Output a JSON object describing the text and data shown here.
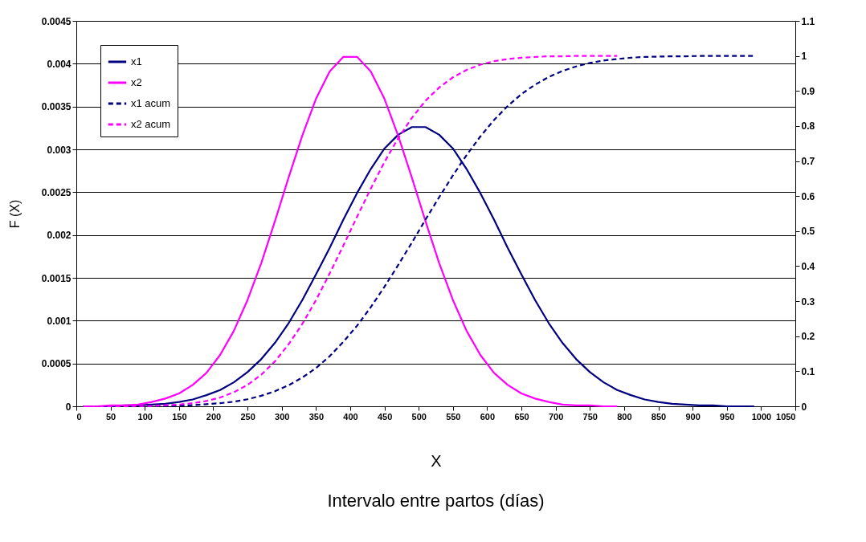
{
  "chart_data": {
    "type": "line",
    "xlabel": "X",
    "ylabel": "F (X)",
    "annotations": [
      "Intervalo entre partos (días)"
    ],
    "xlim": [
      0,
      1050
    ],
    "xticks": [
      0,
      50,
      100,
      150,
      200,
      250,
      300,
      350,
      400,
      450,
      500,
      550,
      600,
      650,
      700,
      750,
      800,
      850,
      900,
      950,
      1000,
      1050
    ],
    "ylim": [
      0,
      0.0045
    ],
    "yticks": [
      0,
      0.0005,
      0.001,
      0.0015,
      0.002,
      0.0025,
      0.003,
      0.0035,
      0.004,
      0.0045
    ],
    "y2lim": [
      0,
      1.1
    ],
    "y2ticks": [
      0,
      0.1,
      0.2,
      0.3,
      0.4,
      0.5,
      0.6,
      0.7,
      0.8,
      0.9,
      1,
      1.1
    ],
    "grid": "y",
    "legend": "top left",
    "marker": "none",
    "series": [
      {
        "name": "x1",
        "color": "#000080",
        "line_style": "solid",
        "x": [
          10,
          30,
          50,
          70,
          90,
          110,
          130,
          150,
          170,
          190,
          210,
          230,
          250,
          270,
          290,
          310,
          330,
          350,
          370,
          390,
          410,
          430,
          450,
          470,
          490,
          510,
          530,
          550,
          570,
          590,
          610,
          630,
          650,
          670,
          690,
          710,
          730,
          750,
          770,
          790,
          810,
          830,
          850,
          870,
          890,
          910,
          930,
          950,
          970,
          990
        ],
        "values": [
          0,
          0,
          0,
          1e-05,
          1e-05,
          2e-05,
          3e-05,
          5e-05,
          8e-05,
          0.00013,
          0.00019,
          0.00028,
          0.0004,
          0.00055,
          0.00074,
          0.00097,
          0.00124,
          0.00154,
          0.00185,
          0.00218,
          0.00249,
          0.00277,
          0.00301,
          0.00317,
          0.00326,
          0.00326,
          0.00317,
          0.00301,
          0.00277,
          0.00249,
          0.00218,
          0.00185,
          0.00154,
          0.00124,
          0.00097,
          0.00074,
          0.00055,
          0.0004,
          0.00028,
          0.00019,
          0.00013,
          8e-05,
          5e-05,
          3e-05,
          2e-05,
          1e-05,
          1e-05,
          0,
          0,
          0
        ]
      },
      {
        "name": "x2",
        "color": "#ff00ff",
        "line_style": "solid",
        "x": [
          10,
          30,
          50,
          70,
          90,
          110,
          130,
          150,
          170,
          190,
          210,
          230,
          250,
          270,
          290,
          310,
          330,
          350,
          370,
          390,
          410,
          430,
          450,
          470,
          490,
          510,
          530,
          550,
          570,
          590,
          610,
          630,
          650,
          670,
          690,
          710,
          730,
          750,
          770,
          790
        ],
        "values": [
          0,
          0,
          1e-05,
          1e-05,
          2e-05,
          5e-05,
          9e-05,
          0.00015,
          0.00025,
          0.00039,
          0.0006,
          0.00088,
          0.00124,
          0.00167,
          0.00216,
          0.00267,
          0.00316,
          0.00359,
          0.00391,
          0.00408,
          0.00408,
          0.00391,
          0.00359,
          0.00316,
          0.00267,
          0.00216,
          0.00167,
          0.00124,
          0.00088,
          0.0006,
          0.00039,
          0.00025,
          0.00015,
          9e-05,
          5e-05,
          2e-05,
          1e-05,
          1e-05,
          0,
          0
        ]
      },
      {
        "name": "x1 acum",
        "color": "#000080",
        "line_style": "dashed",
        "axis": "y2",
        "x": [
          10,
          30,
          50,
          70,
          90,
          110,
          130,
          150,
          170,
          190,
          210,
          230,
          250,
          270,
          290,
          310,
          330,
          350,
          370,
          390,
          410,
          430,
          450,
          470,
          490,
          510,
          530,
          550,
          570,
          590,
          610,
          630,
          650,
          670,
          690,
          710,
          730,
          750,
          770,
          790,
          810,
          830,
          850,
          870,
          890,
          910,
          930,
          950,
          970,
          990
        ],
        "values": [
          0,
          0,
          0,
          0,
          0,
          0.001,
          0.001,
          0.002,
          0.003,
          0.006,
          0.009,
          0.013,
          0.02,
          0.03,
          0.043,
          0.06,
          0.082,
          0.109,
          0.143,
          0.184,
          0.23,
          0.283,
          0.341,
          0.403,
          0.467,
          0.533,
          0.597,
          0.659,
          0.717,
          0.77,
          0.817,
          0.857,
          0.891,
          0.918,
          0.94,
          0.957,
          0.97,
          0.98,
          0.987,
          0.991,
          0.995,
          0.997,
          0.998,
          0.999,
          0.999,
          1,
          1,
          1,
          1,
          1
        ]
      },
      {
        "name": "x2 acum",
        "color": "#ff00ff",
        "line_style": "dashed",
        "axis": "y2",
        "x": [
          10,
          30,
          50,
          70,
          90,
          110,
          130,
          150,
          170,
          190,
          210,
          230,
          250,
          270,
          290,
          310,
          330,
          350,
          370,
          390,
          410,
          430,
          450,
          470,
          490,
          510,
          530,
          550,
          570,
          590,
          610,
          630,
          650,
          670,
          690,
          710,
          730,
          750,
          770,
          790
        ],
        "values": [
          0,
          0,
          0,
          0,
          0.001,
          0.001,
          0.003,
          0.005,
          0.009,
          0.015,
          0.025,
          0.04,
          0.061,
          0.09,
          0.128,
          0.177,
          0.235,
          0.303,
          0.379,
          0.459,
          0.541,
          0.621,
          0.697,
          0.765,
          0.823,
          0.872,
          0.91,
          0.939,
          0.96,
          0.975,
          0.985,
          0.991,
          0.995,
          0.997,
          0.999,
          0.999,
          1,
          1,
          1,
          1
        ]
      }
    ]
  }
}
